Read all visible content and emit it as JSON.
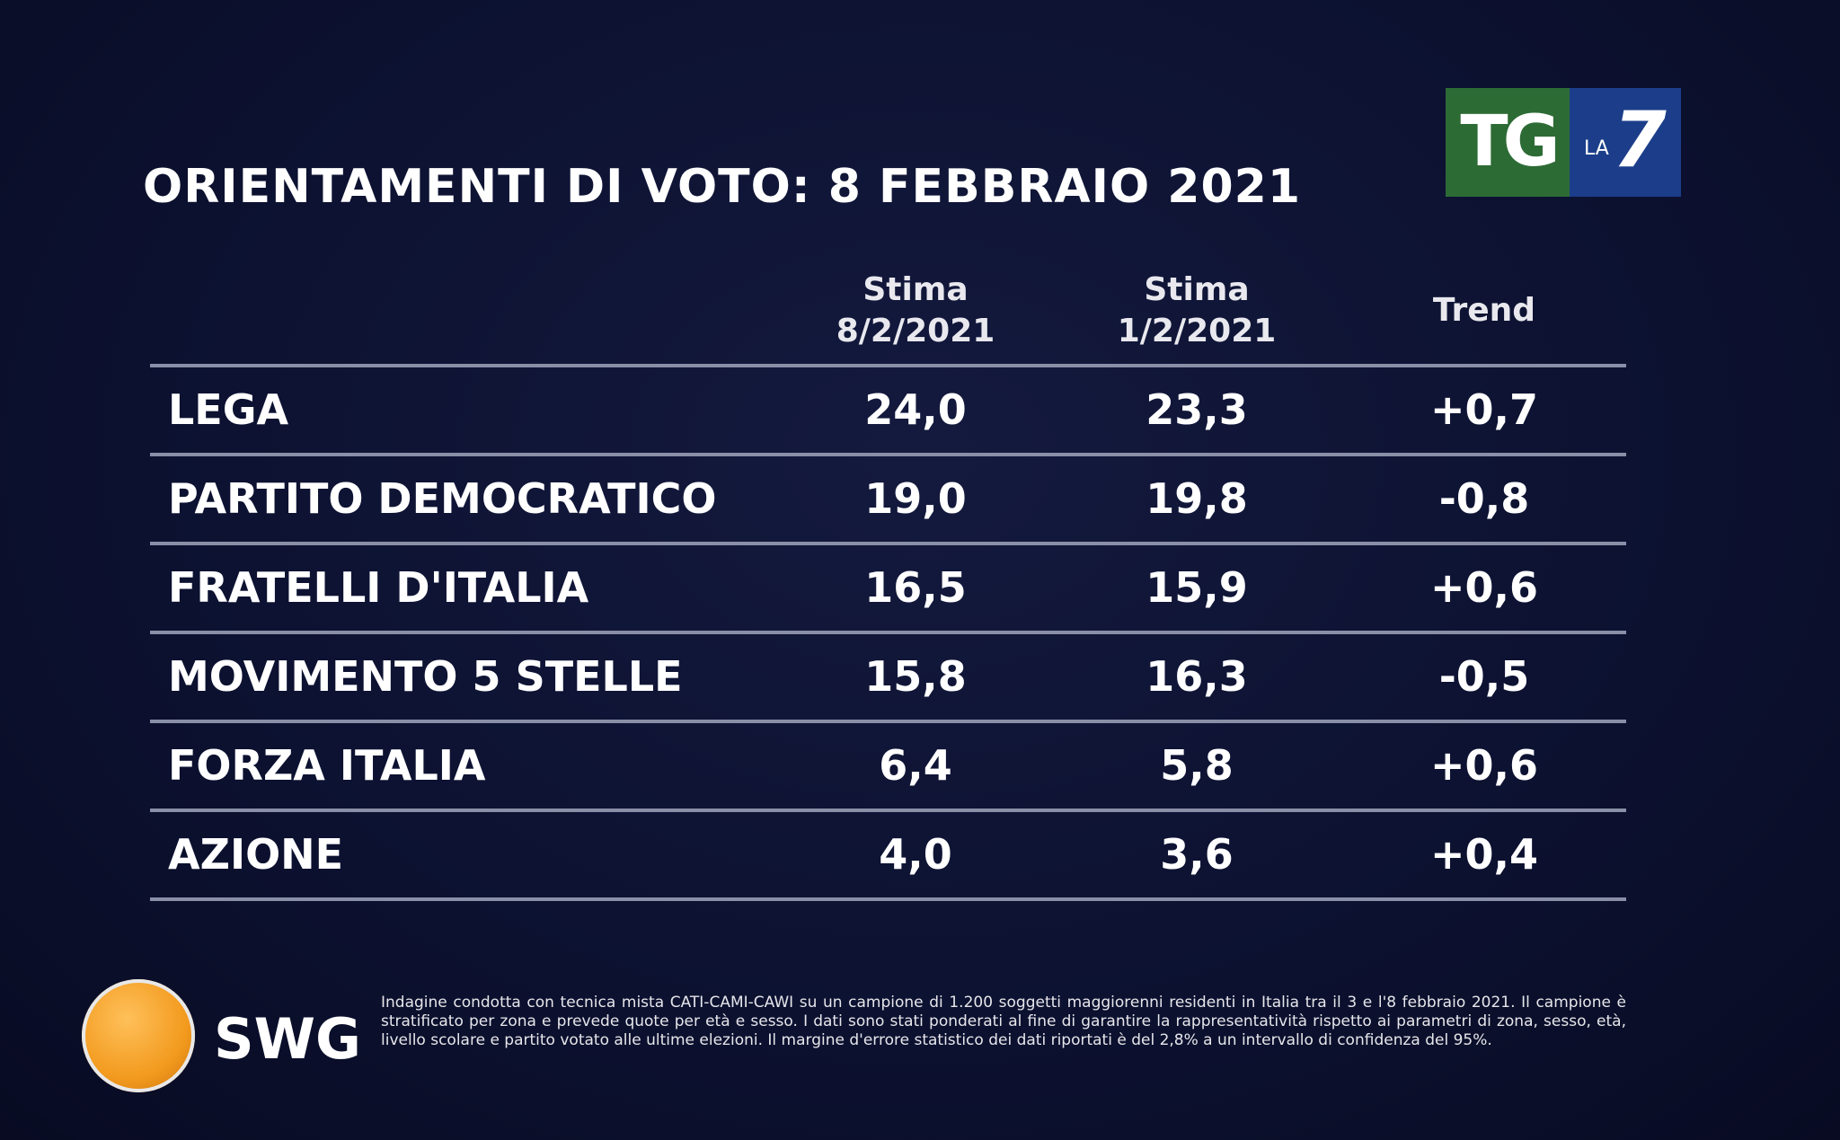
{
  "header": {
    "title": "ORIENTAMENTI DI VOTO: 8 FEBBRAIO 2021"
  },
  "broadcaster_logo": {
    "left": "TG",
    "small": "LA",
    "right": "7"
  },
  "table": {
    "columns": [
      [
        "Stima",
        "8/2/2021"
      ],
      [
        "Stima",
        "1/2/2021"
      ],
      [
        "Trend"
      ]
    ],
    "rows": [
      [
        "LEGA",
        "24,0",
        "23,3",
        "+0,7"
      ],
      [
        "PARTITO DEMOCRATICO",
        "19,0",
        "19,8",
        "-0,8"
      ],
      [
        "FRATELLI D'ITALIA",
        "16,5",
        "15,9",
        "+0,6"
      ],
      [
        "MOVIMENTO 5 STELLE",
        "15,8",
        "16,3",
        "-0,5"
      ],
      [
        "FORZA ITALIA",
        "6,4",
        "5,8",
        "+0,6"
      ],
      [
        "AZIONE",
        "4,0",
        "3,6",
        "+0,4"
      ]
    ]
  },
  "footer": {
    "logo": "SWG",
    "note": "Indagine condotta con tecnica mista CATI-CAMI-CAWI su un campione di 1.200 soggetti maggiorenni residenti in Italia tra il 3 e l'8 febbraio 2021. Il campione è stratificato per zona e prevede quote per età e sesso. I dati sono stati ponderati al fine di garantire la rappresentatività rispetto ai parametri di zona, sesso, età, livello scolare e partito votato alle ultime elezioni. Il margine d'errore statistico dei dati riportati è del 2,8% a un intervallo di confidenza del 95%."
  }
}
